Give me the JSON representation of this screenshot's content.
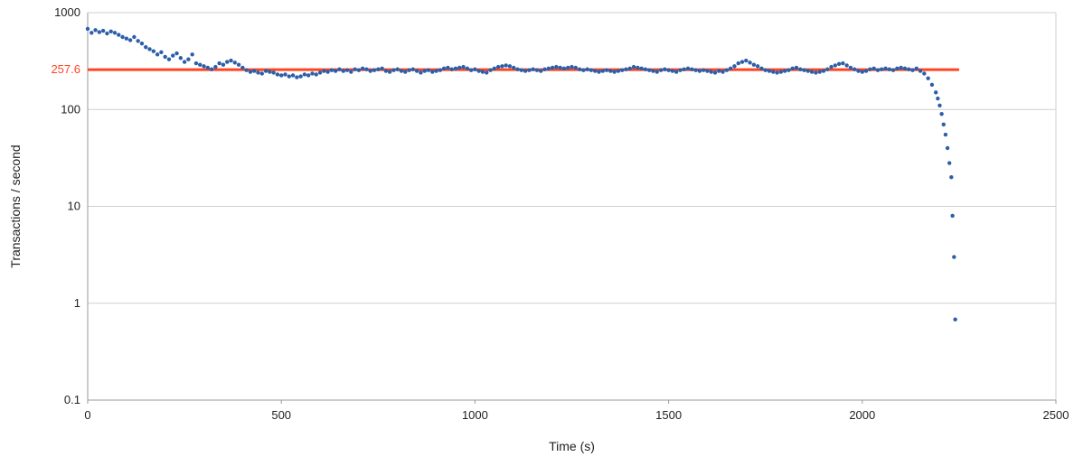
{
  "chart_data": {
    "type": "scatter",
    "title": "",
    "xlabel": "Time (s)",
    "ylabel": "Transactions / second",
    "xlim": [
      0,
      2500
    ],
    "ylim": [
      0.1,
      1000
    ],
    "yscale": "log",
    "grid": "horizontal",
    "legend": "none",
    "x_ticks": [
      0,
      500,
      1000,
      1500,
      2000,
      2500
    ],
    "x_tick_labels": [
      "0",
      "500",
      "1000",
      "1500",
      "2000",
      "2500"
    ],
    "y_ticks": [
      0.1,
      1,
      10,
      100,
      1000
    ],
    "y_tick_labels": [
      "0.1",
      "1",
      "10",
      "100",
      "1000"
    ],
    "reference_line": {
      "value": 257.6,
      "label": "257.6",
      "x_range": [
        0,
        2250
      ],
      "color": "#ff4422"
    },
    "series": [
      {
        "color": "#2b5fa8",
        "points": [
          [
            0,
            680
          ],
          [
            10,
            620
          ],
          [
            20,
            660
          ],
          [
            30,
            630
          ],
          [
            40,
            650
          ],
          [
            50,
            610
          ],
          [
            60,
            640
          ],
          [
            70,
            620
          ],
          [
            80,
            590
          ],
          [
            90,
            560
          ],
          [
            100,
            540
          ],
          [
            110,
            520
          ],
          [
            120,
            560
          ],
          [
            130,
            510
          ],
          [
            140,
            480
          ],
          [
            150,
            440
          ],
          [
            160,
            420
          ],
          [
            170,
            400
          ],
          [
            180,
            370
          ],
          [
            190,
            390
          ],
          [
            200,
            350
          ],
          [
            210,
            330
          ],
          [
            220,
            360
          ],
          [
            230,
            380
          ],
          [
            240,
            340
          ],
          [
            250,
            310
          ],
          [
            260,
            330
          ],
          [
            270,
            370
          ],
          [
            280,
            300
          ],
          [
            290,
            290
          ],
          [
            300,
            280
          ],
          [
            310,
            270
          ],
          [
            320,
            260
          ],
          [
            330,
            275
          ],
          [
            340,
            300
          ],
          [
            350,
            290
          ],
          [
            360,
            310
          ],
          [
            370,
            320
          ],
          [
            380,
            305
          ],
          [
            390,
            290
          ],
          [
            400,
            270
          ],
          [
            410,
            255
          ],
          [
            420,
            245
          ],
          [
            430,
            250
          ],
          [
            440,
            240
          ],
          [
            450,
            235
          ],
          [
            460,
            250
          ],
          [
            470,
            245
          ],
          [
            480,
            240
          ],
          [
            490,
            230
          ],
          [
            500,
            225
          ],
          [
            510,
            230
          ],
          [
            520,
            220
          ],
          [
            530,
            225
          ],
          [
            540,
            215
          ],
          [
            550,
            220
          ],
          [
            560,
            230
          ],
          [
            570,
            225
          ],
          [
            580,
            235
          ],
          [
            590,
            230
          ],
          [
            600,
            240
          ],
          [
            610,
            250
          ],
          [
            620,
            245
          ],
          [
            630,
            255
          ],
          [
            640,
            250
          ],
          [
            650,
            260
          ],
          [
            660,
            250
          ],
          [
            670,
            255
          ],
          [
            680,
            245
          ],
          [
            690,
            260
          ],
          [
            700,
            255
          ],
          [
            710,
            265
          ],
          [
            720,
            260
          ],
          [
            730,
            250
          ],
          [
            740,
            255
          ],
          [
            750,
            260
          ],
          [
            760,
            265
          ],
          [
            770,
            250
          ],
          [
            780,
            245
          ],
          [
            790,
            255
          ],
          [
            800,
            260
          ],
          [
            810,
            250
          ],
          [
            820,
            245
          ],
          [
            830,
            255
          ],
          [
            840,
            260
          ],
          [
            850,
            250
          ],
          [
            860,
            240
          ],
          [
            870,
            250
          ],
          [
            880,
            255
          ],
          [
            890,
            245
          ],
          [
            900,
            250
          ],
          [
            910,
            255
          ],
          [
            920,
            265
          ],
          [
            930,
            270
          ],
          [
            940,
            260
          ],
          [
            950,
            265
          ],
          [
            960,
            270
          ],
          [
            970,
            275
          ],
          [
            980,
            265
          ],
          [
            990,
            255
          ],
          [
            1000,
            260
          ],
          [
            1010,
            250
          ],
          [
            1020,
            245
          ],
          [
            1030,
            240
          ],
          [
            1040,
            255
          ],
          [
            1050,
            265
          ],
          [
            1060,
            275
          ],
          [
            1070,
            280
          ],
          [
            1080,
            285
          ],
          [
            1090,
            280
          ],
          [
            1100,
            270
          ],
          [
            1110,
            260
          ],
          [
            1120,
            255
          ],
          [
            1130,
            250
          ],
          [
            1140,
            255
          ],
          [
            1150,
            260
          ],
          [
            1160,
            255
          ],
          [
            1170,
            250
          ],
          [
            1180,
            260
          ],
          [
            1190,
            265
          ],
          [
            1200,
            270
          ],
          [
            1210,
            275
          ],
          [
            1220,
            270
          ],
          [
            1230,
            265
          ],
          [
            1240,
            270
          ],
          [
            1250,
            275
          ],
          [
            1260,
            270
          ],
          [
            1270,
            260
          ],
          [
            1280,
            255
          ],
          [
            1290,
            260
          ],
          [
            1300,
            255
          ],
          [
            1310,
            250
          ],
          [
            1320,
            245
          ],
          [
            1330,
            250
          ],
          [
            1340,
            255
          ],
          [
            1350,
            250
          ],
          [
            1360,
            245
          ],
          [
            1370,
            250
          ],
          [
            1380,
            255
          ],
          [
            1390,
            260
          ],
          [
            1400,
            265
          ],
          [
            1410,
            275
          ],
          [
            1420,
            270
          ],
          [
            1430,
            265
          ],
          [
            1440,
            260
          ],
          [
            1450,
            255
          ],
          [
            1460,
            250
          ],
          [
            1470,
            245
          ],
          [
            1480,
            255
          ],
          [
            1490,
            260
          ],
          [
            1500,
            255
          ],
          [
            1510,
            250
          ],
          [
            1520,
            245
          ],
          [
            1530,
            255
          ],
          [
            1540,
            260
          ],
          [
            1550,
            265
          ],
          [
            1560,
            260
          ],
          [
            1570,
            255
          ],
          [
            1580,
            250
          ],
          [
            1590,
            255
          ],
          [
            1600,
            250
          ],
          [
            1610,
            245
          ],
          [
            1620,
            240
          ],
          [
            1630,
            250
          ],
          [
            1640,
            245
          ],
          [
            1650,
            255
          ],
          [
            1660,
            265
          ],
          [
            1670,
            280
          ],
          [
            1680,
            300
          ],
          [
            1690,
            310
          ],
          [
            1700,
            320
          ],
          [
            1710,
            305
          ],
          [
            1720,
            290
          ],
          [
            1730,
            280
          ],
          [
            1740,
            265
          ],
          [
            1750,
            255
          ],
          [
            1760,
            250
          ],
          [
            1770,
            245
          ],
          [
            1780,
            240
          ],
          [
            1790,
            245
          ],
          [
            1800,
            250
          ],
          [
            1810,
            255
          ],
          [
            1820,
            265
          ],
          [
            1830,
            270
          ],
          [
            1840,
            260
          ],
          [
            1850,
            255
          ],
          [
            1860,
            250
          ],
          [
            1870,
            245
          ],
          [
            1880,
            240
          ],
          [
            1890,
            245
          ],
          [
            1900,
            250
          ],
          [
            1910,
            260
          ],
          [
            1920,
            275
          ],
          [
            1930,
            285
          ],
          [
            1940,
            295
          ],
          [
            1950,
            300
          ],
          [
            1960,
            285
          ],
          [
            1970,
            270
          ],
          [
            1980,
            260
          ],
          [
            1990,
            250
          ],
          [
            2000,
            245
          ],
          [
            2010,
            250
          ],
          [
            2020,
            260
          ],
          [
            2030,
            265
          ],
          [
            2040,
            255
          ],
          [
            2050,
            260
          ],
          [
            2060,
            265
          ],
          [
            2070,
            260
          ],
          [
            2080,
            255
          ],
          [
            2090,
            265
          ],
          [
            2100,
            270
          ],
          [
            2110,
            265
          ],
          [
            2120,
            260
          ],
          [
            2130,
            255
          ],
          [
            2140,
            265
          ],
          [
            2150,
            250
          ],
          [
            2160,
            235
          ],
          [
            2170,
            210
          ],
          [
            2180,
            180
          ],
          [
            2190,
            150
          ],
          [
            2195,
            130
          ],
          [
            2200,
            110
          ],
          [
            2205,
            90
          ],
          [
            2210,
            70
          ],
          [
            2215,
            55
          ],
          [
            2220,
            40
          ],
          [
            2225,
            28
          ],
          [
            2230,
            20
          ],
          [
            2233,
            8
          ],
          [
            2237,
            3
          ],
          [
            2240,
            0.68
          ]
        ]
      }
    ]
  }
}
